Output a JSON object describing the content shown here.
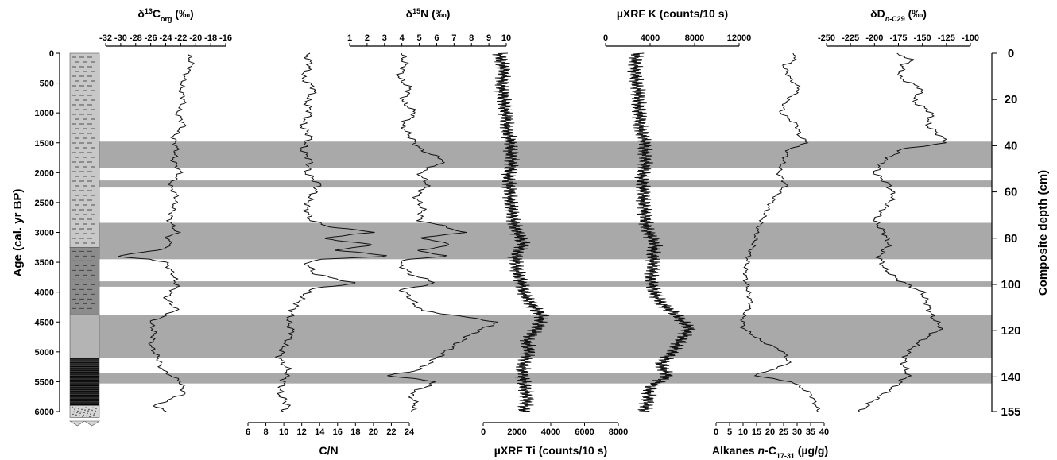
{
  "chart_data": {
    "type": "line",
    "grid": false,
    "age_axis": {
      "label": "Age (cal. yr BP)",
      "range": [
        0,
        6000
      ],
      "ticks": [
        0,
        500,
        1000,
        1500,
        2000,
        2500,
        3000,
        3500,
        4000,
        4500,
        5000,
        5500,
        6000
      ]
    },
    "depth_axis": {
      "label": "Composite depth (cm)",
      "range": [
        0,
        155
      ],
      "ticks": [
        0,
        20,
        40,
        60,
        80,
        100,
        120,
        140,
        155
      ]
    },
    "shaded_intervals_age": [
      [
        1480,
        1920
      ],
      [
        2130,
        2250
      ],
      [
        2840,
        3450
      ],
      [
        3820,
        3910
      ],
      [
        4380,
        5100
      ],
      [
        5350,
        5530
      ]
    ],
    "lithology_units_age": [
      {
        "from": 0,
        "to": 3250,
        "pattern": "light-gray-dashes"
      },
      {
        "from": 3250,
        "to": 4380,
        "pattern": "dark-gray-dashes"
      },
      {
        "from": 4380,
        "to": 5100,
        "pattern": "plain-gray"
      },
      {
        "from": 5100,
        "to": 5900,
        "pattern": "black-lines"
      },
      {
        "from": 5900,
        "to": 6100,
        "pattern": "stippled"
      }
    ],
    "panels": [
      {
        "id": "d13c",
        "title_pre": "δ",
        "title_sup": "13",
        "title_mid": "C",
        "title_sub": "org",
        "title_post": " (‰)",
        "axis_pos": "top",
        "range": [
          -32,
          -16
        ],
        "ticks": [
          -32,
          -30,
          -28,
          -26,
          -24,
          -22,
          -20,
          -18,
          -16
        ],
        "age": [
          0,
          200,
          400,
          600,
          800,
          1000,
          1200,
          1400,
          1600,
          1800,
          2000,
          2200,
          2400,
          2600,
          2800,
          3000,
          3100,
          3200,
          3300,
          3400,
          3450,
          3500,
          3700,
          3900,
          4100,
          4300,
          4500,
          4700,
          4900,
          5100,
          5300,
          5500,
          5700,
          5900,
          6000
        ],
        "values": [
          -21,
          -20.5,
          -21.5,
          -22,
          -21.5,
          -22.5,
          -21.5,
          -23,
          -22.5,
          -23,
          -22,
          -23.5,
          -22.5,
          -23,
          -23.5,
          -22.5,
          -24,
          -23,
          -25,
          -31,
          -26,
          -24,
          -23,
          -22.5,
          -24,
          -22.5,
          -26,
          -25.5,
          -26,
          -25,
          -24.5,
          -22,
          -21.5,
          -25.5,
          -24
        ]
      },
      {
        "id": "cn",
        "title": "C/N",
        "axis_pos": "bottom",
        "range": [
          6,
          24
        ],
        "ticks": [
          6,
          8,
          10,
          12,
          14,
          16,
          18,
          20,
          22,
          24
        ],
        "age": [
          0,
          200,
          400,
          600,
          800,
          1000,
          1200,
          1400,
          1600,
          1800,
          2000,
          2200,
          2400,
          2600,
          2800,
          2900,
          3000,
          3100,
          3200,
          3300,
          3400,
          3450,
          3500,
          3700,
          3850,
          3950,
          4100,
          4300,
          4500,
          4700,
          4900,
          5100,
          5300,
          5500,
          5700,
          5900,
          6000
        ],
        "values": [
          12.5,
          13,
          12,
          13.5,
          12.5,
          13,
          12,
          13,
          12,
          13,
          12.5,
          14,
          13,
          12.5,
          13,
          15,
          20,
          14,
          20,
          16,
          22,
          14,
          12.5,
          13.5,
          18,
          13,
          12,
          11,
          10.5,
          11,
          10,
          9.5,
          10.5,
          10,
          9.5,
          10.5,
          10
        ]
      },
      {
        "id": "d15n",
        "title_pre": "δ",
        "title_sup": "15",
        "title_mid": "N",
        "title_post": " (‰)",
        "axis_pos": "top",
        "range": [
          1,
          10
        ],
        "ticks": [
          1,
          2,
          3,
          4,
          5,
          6,
          7,
          8,
          9,
          10
        ],
        "age": [
          0,
          200,
          400,
          600,
          800,
          1000,
          1200,
          1400,
          1600,
          1800,
          2000,
          2200,
          2400,
          2600,
          2800,
          2900,
          3000,
          3100,
          3200,
          3300,
          3400,
          3450,
          3500,
          3700,
          3850,
          3950,
          4100,
          4300,
          4500,
          4700,
          4900,
          5100,
          5300,
          5400,
          5500,
          5700,
          5900,
          6000
        ],
        "values": [
          4,
          4.2,
          3.8,
          4.5,
          4,
          4.8,
          4,
          4.5,
          5,
          6.5,
          5,
          5.5,
          4.8,
          5.2,
          5,
          6.5,
          7.5,
          5,
          7,
          5,
          6.5,
          4.5,
          3.8,
          4.5,
          6,
          4,
          4.5,
          5,
          9.5,
          8,
          7,
          6,
          5,
          3.2,
          6,
          4.5,
          4.8,
          4.5
        ]
      },
      {
        "id": "ti",
        "title": "µXRF Ti (counts/10 s)",
        "axis_pos": "bottom",
        "range": [
          0,
          8000
        ],
        "ticks": [
          0,
          2000,
          4000,
          6000,
          8000
        ],
        "age": [
          0,
          300,
          600,
          900,
          1200,
          1500,
          1800,
          2100,
          2400,
          2700,
          3000,
          3200,
          3400,
          3600,
          3800,
          4000,
          4200,
          4400,
          4600,
          4800,
          5000,
          5200,
          5400,
          5600,
          5800,
          6000
        ],
        "values": [
          1000,
          1200,
          1100,
          1300,
          1400,
          1600,
          1700,
          1500,
          1600,
          1700,
          2000,
          2400,
          1900,
          2000,
          2200,
          2400,
          2800,
          3500,
          3200,
          2600,
          2700,
          2400,
          2300,
          2500,
          2600,
          2400
        ]
      },
      {
        "id": "k",
        "title": "µXRF K (counts/10 s)",
        "axis_pos": "top",
        "range": [
          0,
          12000
        ],
        "ticks": [
          0,
          4000,
          8000,
          12000
        ],
        "age": [
          0,
          300,
          600,
          900,
          1200,
          1500,
          1800,
          2100,
          2400,
          2700,
          3000,
          3200,
          3400,
          3600,
          3800,
          4000,
          4200,
          4400,
          4600,
          4800,
          5000,
          5200,
          5400,
          5600,
          5800,
          6000
        ],
        "values": [
          2800,
          2600,
          2900,
          3000,
          3100,
          3500,
          3600,
          3300,
          3400,
          3500,
          3800,
          4500,
          4200,
          4300,
          4000,
          4400,
          5000,
          6500,
          7500,
          6800,
          6000,
          5000,
          5500,
          4000,
          3800,
          3500
        ]
      },
      {
        "id": "alk",
        "title_pre": "Alkanes ",
        "title_ital": "n",
        "title_mid": "-C",
        "title_sub": "17-31",
        "title_post": " (µg/g)",
        "axis_pos": "bottom",
        "range": [
          0,
          40
        ],
        "ticks": [
          0,
          5,
          10,
          15,
          20,
          25,
          30,
          35,
          40
        ],
        "age": [
          0,
          100,
          200,
          400,
          600,
          800,
          1000,
          1200,
          1400,
          1500,
          1600,
          1800,
          2000,
          2200,
          2400,
          2600,
          2800,
          3000,
          3200,
          3400,
          3600,
          3800,
          4000,
          4200,
          4400,
          4600,
          4800,
          5000,
          5200,
          5400,
          5500,
          5700,
          5900,
          6000
        ],
        "values": [
          28,
          30,
          25,
          27,
          31,
          26,
          24,
          30,
          31,
          34,
          27,
          25,
          23,
          26,
          22,
          19,
          17,
          15,
          14,
          12,
          11,
          11,
          12,
          13,
          10,
          10,
          16,
          25,
          27,
          14,
          28,
          35,
          37,
          38
        ]
      },
      {
        "id": "dd",
        "title_pre": "δD",
        "title_sub_ital": "n",
        "title_sub": "-C29",
        "title_post": " (‰)",
        "axis_pos": "top",
        "range": [
          -250,
          -100
        ],
        "ticks": [
          -250,
          -225,
          -200,
          -175,
          -150,
          -125,
          -100
        ],
        "age": [
          0,
          100,
          200,
          400,
          600,
          800,
          1000,
          1200,
          1400,
          1500,
          1600,
          1800,
          2000,
          2200,
          2400,
          2600,
          2800,
          3000,
          3200,
          3400,
          3600,
          3800,
          4000,
          4200,
          4400,
          4600,
          4800,
          5000,
          5200,
          5400,
          5600,
          5800,
          6000
        ],
        "values": [
          -180,
          -160,
          -170,
          -175,
          -150,
          -160,
          -140,
          -145,
          -130,
          -125,
          -170,
          -190,
          -200,
          -185,
          -180,
          -190,
          -200,
          -190,
          -185,
          -195,
          -190,
          -175,
          -150,
          -145,
          -140,
          -130,
          -150,
          -165,
          -170,
          -165,
          -180,
          -200,
          -215
        ]
      }
    ]
  }
}
